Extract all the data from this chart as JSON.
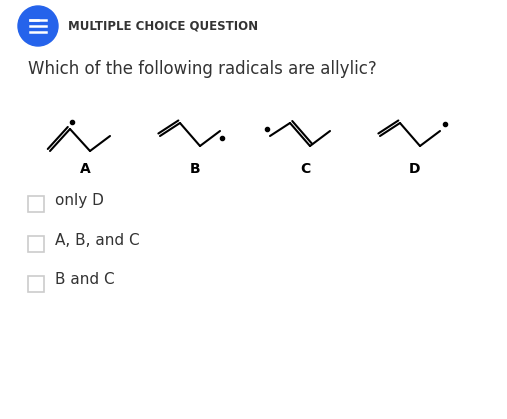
{
  "title": "MULTIPLE CHOICE QUESTION",
  "question": "Which of the following radicals are allylic?",
  "choices": [
    "only D",
    "A, B, and C",
    "B and C"
  ],
  "bg_color": "#ffffff",
  "header_circle_color": "#2563EB",
  "header_text_color": "#333333",
  "question_text_color": "#333333",
  "choice_text_color": "#333333",
  "label_color": "#000000",
  "molecule_labels": [
    "A",
    "B",
    "C",
    "D"
  ],
  "checkbox_color": "#cccccc",
  "line_color": "#000000",
  "dot_color": "#000000"
}
